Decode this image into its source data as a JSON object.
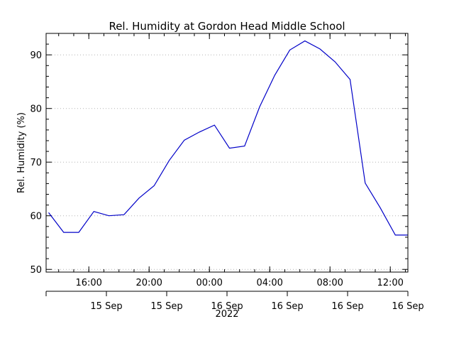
{
  "chart_data": {
    "type": "line",
    "title": "Rel. Humidity at Gordon Head Middle School",
    "ylabel": "Rel. Humidity (%)",
    "year_label": "2022",
    "ylim": [
      49.5,
      94
    ],
    "y_ticks": [
      50,
      60,
      70,
      80,
      90
    ],
    "x_time_range": [
      "2022-09-15T13:10",
      "2022-09-16T13:10"
    ],
    "x_hour_ticks": [
      {
        "time": "2022-09-15T16:00",
        "label": "16:00"
      },
      {
        "time": "2022-09-15T20:00",
        "label": "20:00"
      },
      {
        "time": "2022-09-16T00:00",
        "label": "00:00"
      },
      {
        "time": "2022-09-16T04:00",
        "label": "04:00"
      },
      {
        "time": "2022-09-16T08:00",
        "label": "08:00"
      },
      {
        "time": "2022-09-16T12:00",
        "label": "12:00"
      }
    ],
    "x_date_ticks": [
      {
        "time": "2022-09-15T13:10",
        "label": ""
      },
      {
        "time": "2022-09-15T17:10",
        "label": "15 Sep"
      },
      {
        "time": "2022-09-15T21:10",
        "label": "15 Sep"
      },
      {
        "time": "2022-09-16T01:10",
        "label": "16 Sep"
      },
      {
        "time": "2022-09-16T05:10",
        "label": "16 Sep"
      },
      {
        "time": "2022-09-16T09:10",
        "label": "16 Sep"
      },
      {
        "time": "2022-09-16T13:10",
        "label": "16 Sep"
      }
    ],
    "grid": "y-dotted",
    "line_color": "#0000c8",
    "series": [
      {
        "x": [
          "2022-09-15T13:20",
          "2022-09-15T14:20",
          "2022-09-15T15:20",
          "2022-09-15T16:20",
          "2022-09-15T17:20",
          "2022-09-15T18:20",
          "2022-09-15T19:20",
          "2022-09-15T20:20",
          "2022-09-15T21:20",
          "2022-09-15T22:20",
          "2022-09-15T23:20",
          "2022-09-16T00:20",
          "2022-09-16T01:20",
          "2022-09-16T02:20",
          "2022-09-16T03:20",
          "2022-09-16T04:20",
          "2022-09-16T05:20",
          "2022-09-16T06:20",
          "2022-09-16T07:20",
          "2022-09-16T08:20",
          "2022-09-16T09:20",
          "2022-09-16T10:20",
          "2022-09-16T11:20",
          "2022-09-16T12:20",
          "2022-09-16T13:10"
        ],
        "values": [
          60.6,
          56.9,
          56.9,
          60.8,
          60.0,
          60.2,
          63.3,
          65.6,
          70.3,
          74.1,
          75.6,
          76.9,
          72.6,
          73.0,
          80.3,
          86.2,
          90.9,
          92.6,
          91.1,
          88.7,
          85.4,
          66.1,
          61.5,
          56.4,
          56.4
        ]
      }
    ]
  }
}
